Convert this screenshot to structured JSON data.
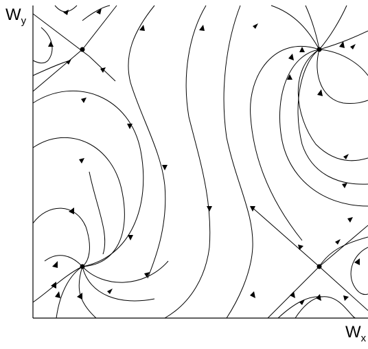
{
  "axes": {
    "y_label": "W",
    "y_sub": "y",
    "x_label": "W",
    "x_sub": "x"
  },
  "fixed_points": [
    "saddle-upper-left",
    "node-upper-right",
    "node-lower-left",
    "saddle-lower-right"
  ],
  "colors": {
    "stroke": "#000000",
    "background": "#ffffff"
  }
}
